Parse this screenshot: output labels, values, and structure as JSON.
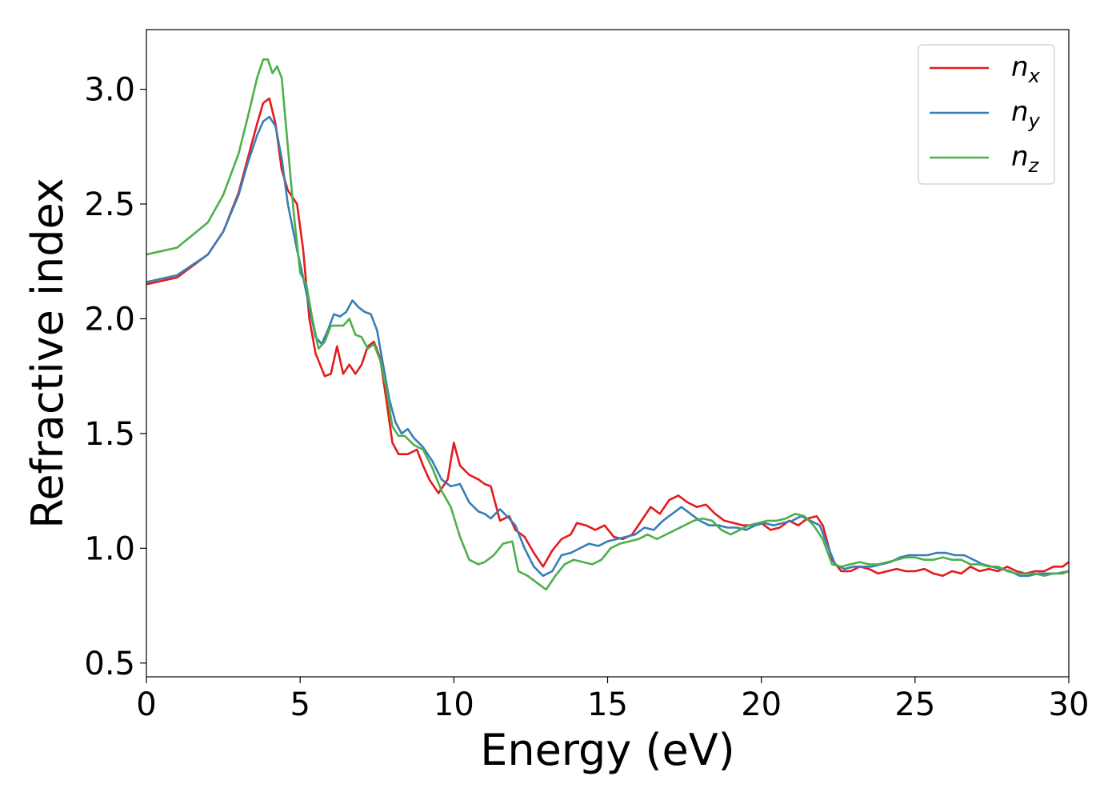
{
  "chart_data": {
    "type": "line",
    "xlabel": "Energy (eV)",
    "ylabel": "Refractive index",
    "xlim": [
      0,
      30
    ],
    "ylim": [
      0.44,
      3.26
    ],
    "xticks": [
      0,
      5,
      10,
      15,
      20,
      25,
      30
    ],
    "xtick_labels": [
      "0",
      "5",
      "10",
      "15",
      "20",
      "25",
      "30"
    ],
    "yticks": [
      0.5,
      1.0,
      1.5,
      2.0,
      2.5,
      3.0
    ],
    "ytick_labels": [
      "0.5",
      "1.0",
      "1.5",
      "2.0",
      "2.5",
      "3.0"
    ],
    "grid": false,
    "legend_position": "top-right",
    "series": [
      {
        "name": "n_x",
        "base": "n",
        "sub": "x",
        "color": "#e41a1c",
        "x": [
          0,
          1,
          2,
          2.5,
          3,
          3.3,
          3.6,
          3.8,
          4.0,
          4.2,
          4.4,
          4.6,
          4.9,
          5.1,
          5.3,
          5.5,
          5.8,
          6.0,
          6.2,
          6.4,
          6.6,
          6.8,
          7.0,
          7.2,
          7.4,
          7.6,
          7.8,
          8.0,
          8.2,
          8.5,
          8.8,
          9.0,
          9.2,
          9.5,
          9.8,
          10.0,
          10.2,
          10.5,
          10.8,
          11.0,
          11.2,
          11.5,
          11.8,
          12.0,
          12.3,
          12.6,
          12.9,
          13.2,
          13.5,
          13.8,
          14.0,
          14.3,
          14.6,
          14.9,
          15.2,
          15.5,
          15.8,
          16.1,
          16.4,
          16.7,
          17.0,
          17.3,
          17.6,
          17.9,
          18.2,
          18.5,
          18.8,
          19.1,
          19.4,
          19.7,
          20.0,
          20.3,
          20.6,
          20.9,
          21.2,
          21.5,
          21.8,
          22.0,
          22.3,
          22.6,
          22.9,
          23.2,
          23.5,
          23.8,
          24.1,
          24.4,
          24.7,
          25.0,
          25.3,
          25.6,
          25.9,
          26.2,
          26.5,
          26.8,
          27.1,
          27.4,
          27.7,
          28.0,
          28.3,
          28.6,
          28.9,
          29.2,
          29.5,
          29.8,
          30.0
        ],
        "y": [
          2.15,
          2.18,
          2.28,
          2.38,
          2.55,
          2.7,
          2.85,
          2.94,
          2.96,
          2.85,
          2.65,
          2.56,
          2.5,
          2.3,
          2.0,
          1.85,
          1.75,
          1.76,
          1.88,
          1.76,
          1.8,
          1.76,
          1.8,
          1.88,
          1.9,
          1.83,
          1.65,
          1.46,
          1.41,
          1.41,
          1.43,
          1.36,
          1.3,
          1.24,
          1.3,
          1.46,
          1.36,
          1.32,
          1.3,
          1.28,
          1.27,
          1.12,
          1.14,
          1.08,
          1.05,
          0.98,
          0.92,
          0.99,
          1.04,
          1.06,
          1.11,
          1.1,
          1.08,
          1.1,
          1.05,
          1.04,
          1.06,
          1.12,
          1.18,
          1.15,
          1.21,
          1.23,
          1.2,
          1.18,
          1.19,
          1.15,
          1.12,
          1.11,
          1.1,
          1.1,
          1.11,
          1.08,
          1.09,
          1.12,
          1.1,
          1.13,
          1.14,
          1.1,
          0.95,
          0.9,
          0.9,
          0.92,
          0.91,
          0.89,
          0.9,
          0.91,
          0.9,
          0.9,
          0.91,
          0.89,
          0.88,
          0.9,
          0.89,
          0.92,
          0.9,
          0.91,
          0.9,
          0.92,
          0.9,
          0.89,
          0.9,
          0.9,
          0.92,
          0.92,
          0.94
        ]
      },
      {
        "name": "n_y",
        "base": "n",
        "sub": "y",
        "color": "#377eb8",
        "x": [
          0,
          1,
          2,
          2.5,
          3,
          3.3,
          3.6,
          3.8,
          4.0,
          4.2,
          4.4,
          4.6,
          4.9,
          5.1,
          5.3,
          5.5,
          5.7,
          5.9,
          6.1,
          6.3,
          6.5,
          6.7,
          6.9,
          7.1,
          7.3,
          7.5,
          7.7,
          7.9,
          8.1,
          8.3,
          8.5,
          8.7,
          9.0,
          9.3,
          9.6,
          9.9,
          10.2,
          10.5,
          10.8,
          11.0,
          11.2,
          11.5,
          11.8,
          12.0,
          12.3,
          12.6,
          12.9,
          13.2,
          13.5,
          13.8,
          14.1,
          14.4,
          14.7,
          15.0,
          15.3,
          15.6,
          15.9,
          16.2,
          16.5,
          16.8,
          17.1,
          17.4,
          17.7,
          18.0,
          18.3,
          18.6,
          18.9,
          19.2,
          19.5,
          19.8,
          20.1,
          20.4,
          20.7,
          21.0,
          21.3,
          21.6,
          21.9,
          22.1,
          22.4,
          22.7,
          23.0,
          23.3,
          23.6,
          23.9,
          24.2,
          24.5,
          24.8,
          25.1,
          25.4,
          25.7,
          26.0,
          26.3,
          26.6,
          26.9,
          27.2,
          27.5,
          27.8,
          28.1,
          28.4,
          28.7,
          29.0,
          29.3,
          29.6,
          30.0
        ],
        "y": [
          2.16,
          2.19,
          2.28,
          2.38,
          2.54,
          2.68,
          2.8,
          2.86,
          2.88,
          2.84,
          2.7,
          2.5,
          2.3,
          2.18,
          2.05,
          1.92,
          1.89,
          1.95,
          2.02,
          2.01,
          2.03,
          2.08,
          2.05,
          2.03,
          2.02,
          1.95,
          1.8,
          1.65,
          1.55,
          1.5,
          1.52,
          1.48,
          1.44,
          1.38,
          1.3,
          1.27,
          1.28,
          1.2,
          1.16,
          1.15,
          1.13,
          1.17,
          1.13,
          1.1,
          1.0,
          0.92,
          0.88,
          0.9,
          0.97,
          0.98,
          1.0,
          1.02,
          1.01,
          1.03,
          1.04,
          1.05,
          1.06,
          1.09,
          1.08,
          1.12,
          1.15,
          1.18,
          1.15,
          1.12,
          1.1,
          1.1,
          1.09,
          1.09,
          1.08,
          1.1,
          1.11,
          1.1,
          1.11,
          1.12,
          1.14,
          1.12,
          1.1,
          1.03,
          0.93,
          0.91,
          0.92,
          0.92,
          0.92,
          0.93,
          0.94,
          0.96,
          0.97,
          0.97,
          0.97,
          0.98,
          0.98,
          0.97,
          0.97,
          0.95,
          0.93,
          0.92,
          0.91,
          0.9,
          0.88,
          0.88,
          0.89,
          0.89,
          0.89,
          0.9
        ]
      },
      {
        "name": "n_z",
        "base": "n",
        "sub": "z",
        "color": "#4daf4a",
        "x": [
          0,
          1,
          2,
          2.5,
          3,
          3.3,
          3.6,
          3.8,
          3.95,
          4.1,
          4.25,
          4.4,
          4.6,
          4.8,
          5.0,
          5.2,
          5.4,
          5.6,
          5.8,
          6.0,
          6.2,
          6.4,
          6.6,
          6.8,
          7.0,
          7.2,
          7.4,
          7.6,
          7.8,
          8.0,
          8.2,
          8.4,
          8.7,
          9.0,
          9.3,
          9.6,
          9.9,
          10.2,
          10.5,
          10.8,
          11.0,
          11.3,
          11.6,
          11.9,
          12.1,
          12.4,
          12.7,
          13.0,
          13.3,
          13.6,
          13.9,
          14.2,
          14.5,
          14.8,
          15.1,
          15.4,
          15.7,
          16.0,
          16.3,
          16.6,
          16.9,
          17.2,
          17.5,
          17.8,
          18.1,
          18.4,
          18.7,
          19.0,
          19.3,
          19.6,
          19.9,
          20.2,
          20.5,
          20.8,
          21.1,
          21.4,
          21.7,
          22.0,
          22.3,
          22.6,
          22.9,
          23.2,
          23.5,
          23.8,
          24.1,
          24.4,
          24.7,
          25.0,
          25.3,
          25.6,
          25.9,
          26.2,
          26.5,
          26.8,
          27.1,
          27.4,
          27.7,
          28.0,
          28.3,
          28.6,
          28.9,
          29.2,
          29.5,
          29.8,
          30.0
        ],
        "y": [
          2.28,
          2.31,
          2.42,
          2.54,
          2.72,
          2.88,
          3.05,
          3.13,
          3.13,
          3.07,
          3.1,
          3.05,
          2.75,
          2.45,
          2.2,
          2.15,
          2.0,
          1.87,
          1.9,
          1.97,
          1.97,
          1.97,
          2.0,
          1.93,
          1.92,
          1.87,
          1.89,
          1.82,
          1.7,
          1.53,
          1.49,
          1.49,
          1.45,
          1.43,
          1.35,
          1.25,
          1.18,
          1.05,
          0.95,
          0.93,
          0.94,
          0.97,
          1.02,
          1.03,
          0.9,
          0.88,
          0.85,
          0.82,
          0.88,
          0.93,
          0.95,
          0.94,
          0.93,
          0.95,
          1.0,
          1.02,
          1.03,
          1.04,
          1.06,
          1.04,
          1.06,
          1.08,
          1.1,
          1.12,
          1.13,
          1.12,
          1.08,
          1.06,
          1.08,
          1.1,
          1.11,
          1.12,
          1.12,
          1.13,
          1.15,
          1.14,
          1.1,
          1.04,
          0.93,
          0.92,
          0.93,
          0.94,
          0.93,
          0.93,
          0.94,
          0.95,
          0.96,
          0.96,
          0.95,
          0.95,
          0.96,
          0.95,
          0.95,
          0.93,
          0.93,
          0.92,
          0.92,
          0.9,
          0.89,
          0.89,
          0.89,
          0.88,
          0.89,
          0.89,
          0.9
        ]
      }
    ]
  }
}
